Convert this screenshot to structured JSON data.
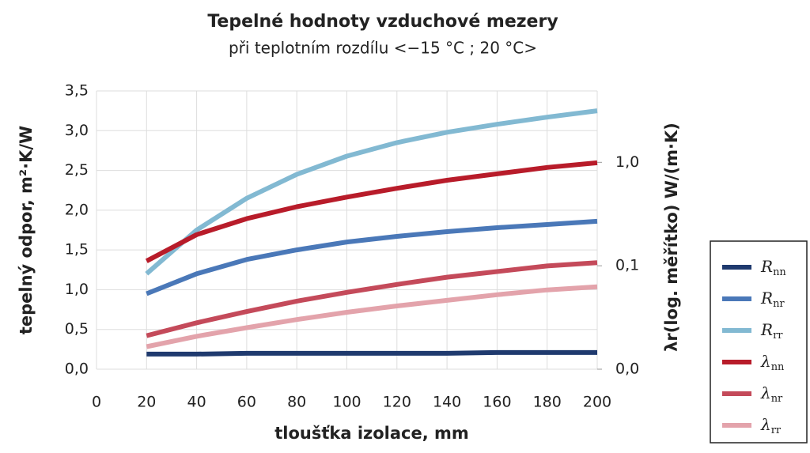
{
  "chart_data": {
    "type": "line",
    "title": "Tepelné hodnoty vzduchové mezery",
    "subtitle": "při teplotním rozdílu <−15 °C ; 20 °C>",
    "x_label": "tloušťka izolace, mm",
    "y_label": "tepelný odpor, m²·K/W",
    "y2_label": "λr(log. měřítko) W/(m·K)",
    "xlim": [
      0,
      200
    ],
    "xticks": [
      0,
      20,
      40,
      60,
      80,
      100,
      120,
      140,
      160,
      180,
      200
    ],
    "ylim": [
      0,
      3.5
    ],
    "yticks": [
      {
        "value": 0,
        "label": "0,0"
      },
      {
        "value": 0.5,
        "label": "0,5"
      },
      {
        "value": 1,
        "label": "1,0"
      },
      {
        "value": 1.5,
        "label": "1,5"
      },
      {
        "value": 2,
        "label": "2,0"
      },
      {
        "value": 2.5,
        "label": "2,5"
      },
      {
        "value": 3,
        "label": "3,0"
      },
      {
        "value": 3.5,
        "label": "3,5"
      }
    ],
    "y2lim": [
      0.01,
      4.9
    ],
    "y2log": true,
    "y2ticks": [
      {
        "value": 0.01,
        "label": "0,0"
      },
      {
        "value": 0.1,
        "label": "0,1"
      },
      {
        "value": 1,
        "label": "1,0"
      }
    ],
    "grid": true,
    "x": [
      20,
      40,
      60,
      80,
      100,
      120,
      140,
      160,
      180,
      200
    ],
    "series": [
      {
        "name": "Rnn",
        "color": "#1f3a6e",
        "values": [
          0.19,
          0.19,
          0.2,
          0.2,
          0.2,
          0.2,
          0.2,
          0.21,
          0.21,
          0.21
        ]
      },
      {
        "name": "Rnr",
        "color": "#4a78b8",
        "values": [
          0.95,
          1.2,
          1.38,
          1.5,
          1.6,
          1.67,
          1.73,
          1.78,
          1.82,
          1.86
        ]
      },
      {
        "name": "Rrr",
        "color": "#82b9d2",
        "values": [
          1.2,
          1.75,
          2.15,
          2.45,
          2.68,
          2.85,
          2.98,
          3.08,
          3.17,
          3.25
        ]
      },
      {
        "name": "λnn",
        "color": "#b81c2a",
        "axis": "y2",
        "values": [
          0.111,
          0.2,
          0.285,
          0.372,
          0.461,
          0.561,
          0.671,
          0.774,
          0.892,
          0.99
        ]
      },
      {
        "name": "λnr",
        "color": "#c44a5a",
        "axis": "y2",
        "values": [
          0.0211,
          0.0281,
          0.0361,
          0.0455,
          0.0553,
          0.066,
          0.0776,
          0.0879,
          0.0995,
          0.107
        ]
      },
      {
        "name": "λrr",
        "color": "#e3a3ab",
        "axis": "y2",
        "values": [
          0.0165,
          0.0208,
          0.0252,
          0.0302,
          0.0355,
          0.0409,
          0.0463,
          0.0525,
          0.0584,
          0.0627
        ]
      }
    ]
  }
}
